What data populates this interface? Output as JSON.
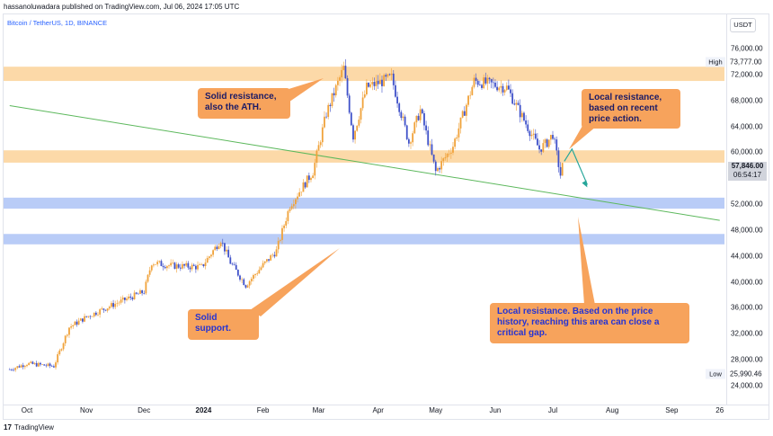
{
  "header": {
    "caption": "hassanoluwadara published on TradingView.com, Jul 06, 2024 17:05 UTC",
    "symbol": "Bitcoin / TetherUS, 1D, BINANCE",
    "currency": "USDT"
  },
  "footer": {
    "logo_mark": "17",
    "logo_text": "TradingView"
  },
  "colors": {
    "up_candle": "#f0a23a",
    "down_candle": "#3f51c9",
    "resistance_zone": "#fcd9a8",
    "support_zone": "#b9ccf7",
    "trendline": "#5cb85c",
    "callout": "#f7a35c"
  },
  "chart_data": {
    "type": "candlestick",
    "title": "Bitcoin / TetherUS, 1D, BINANCE",
    "xlabel": "",
    "ylabel": "",
    "y_axis": {
      "unit": "USDT",
      "ylim": [
        22000,
        82000
      ],
      "tick_values": [
        24000,
        28000,
        32000,
        36000,
        40000,
        44000,
        48000,
        52000,
        60000,
        64000,
        68000,
        72000,
        76000
      ],
      "tick_labels": [
        "24,000.00",
        "28,000.00",
        "32,000.00",
        "36,000.00",
        "40,000.00",
        "44,000.00",
        "48,000.00",
        "52,000.00",
        "60,000.00",
        "64,000.00",
        "68,000.00",
        "72,000.00",
        "76,000.00"
      ]
    },
    "x_axis": {
      "ticks": [
        {
          "label": "Oct",
          "date": "2023-10-01"
        },
        {
          "label": "Nov",
          "date": "2023-11-01"
        },
        {
          "label": "Dec",
          "date": "2023-12-01"
        },
        {
          "label": "2024",
          "date": "2024-01-01",
          "bold": true
        },
        {
          "label": "Feb",
          "date": "2024-02-01"
        },
        {
          "label": "Mar",
          "date": "2024-03-01"
        },
        {
          "label": "Apr",
          "date": "2024-04-01"
        },
        {
          "label": "May",
          "date": "2024-05-01"
        },
        {
          "label": "Jun",
          "date": "2024-06-01"
        },
        {
          "label": "Jul",
          "date": "2024-07-01"
        },
        {
          "label": "Aug",
          "date": "2024-08-01"
        },
        {
          "label": "Sep",
          "date": "2024-09-01"
        },
        {
          "label": "26",
          "date": "2024-09-26"
        }
      ]
    },
    "price_path": [
      [
        "2023-09-22",
        26500
      ],
      [
        "2023-10-01",
        27400
      ],
      [
        "2023-10-15",
        27000
      ],
      [
        "2023-10-23",
        33000
      ],
      [
        "2023-11-01",
        34600
      ],
      [
        "2023-11-15",
        36500
      ],
      [
        "2023-12-01",
        38500
      ],
      [
        "2023-12-05",
        43000
      ],
      [
        "2023-12-15",
        42500
      ],
      [
        "2023-12-31",
        42300
      ],
      [
        "2024-01-10",
        46500
      ],
      [
        "2024-01-15",
        43000
      ],
      [
        "2024-01-23",
        39500
      ],
      [
        "2024-02-01",
        42600
      ],
      [
        "2024-02-08",
        44800
      ],
      [
        "2024-02-15",
        51800
      ],
      [
        "2024-02-27",
        57000
      ],
      [
        "2024-03-05",
        66000
      ],
      [
        "2024-03-14",
        73000
      ],
      [
        "2024-03-19",
        62500
      ],
      [
        "2024-03-26",
        70000
      ],
      [
        "2024-04-08",
        71500
      ],
      [
        "2024-04-17",
        61500
      ],
      [
        "2024-04-23",
        66500
      ],
      [
        "2024-05-01",
        57000
      ],
      [
        "2024-05-10",
        61000
      ],
      [
        "2024-05-21",
        71000
      ],
      [
        "2024-06-07",
        70000
      ],
      [
        "2024-06-24",
        60500
      ],
      [
        "2024-06-28",
        61500
      ],
      [
        "2024-07-01",
        62800
      ],
      [
        "2024-07-05",
        56500
      ],
      [
        "2024-07-06",
        57846
      ]
    ],
    "zones": [
      {
        "kind": "resistance",
        "from": 71000,
        "to": 73200
      },
      {
        "kind": "resistance",
        "from": 58400,
        "to": 60300
      },
      {
        "kind": "support",
        "from": 51300,
        "to": 53000
      },
      {
        "kind": "support",
        "from": 45800,
        "to": 47400
      }
    ],
    "trendline": [
      [
        "2023-09-22",
        67200
      ],
      [
        "2024-09-26",
        49500
      ]
    ],
    "projection_arrow": [
      [
        "2024-07-07",
        58600
      ],
      [
        "2024-07-11",
        60500
      ],
      [
        "2024-07-19",
        55000
      ]
    ],
    "high": {
      "label": "High",
      "value": "73,777.00"
    },
    "low": {
      "label": "Low",
      "value": "25,990.46"
    },
    "last_price": {
      "value": "57,846.00",
      "countdown": "06:54:17"
    }
  },
  "callouts": [
    {
      "id": "ath",
      "text": "Solid resistance, also the ATH."
    },
    {
      "id": "local_top",
      "text": "Local resistance, based on recent price action."
    },
    {
      "id": "support",
      "text": "Solid support."
    },
    {
      "id": "local_bottom",
      "text": "Local resistance. Based on the price history, reaching this area can close a critical gap."
    }
  ]
}
